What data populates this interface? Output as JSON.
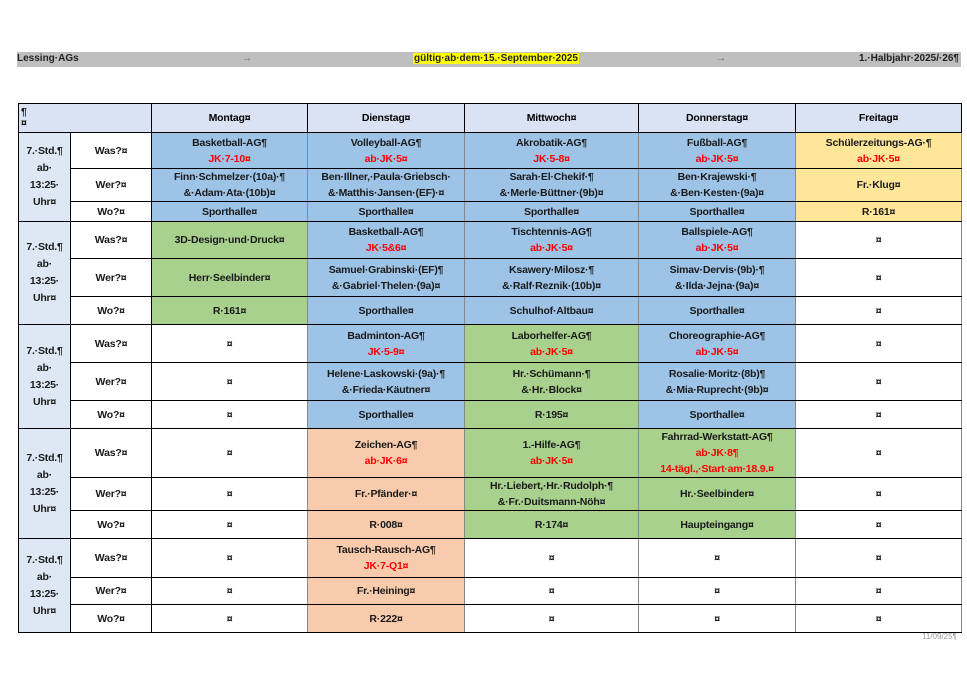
{
  "header": {
    "left": "Lessing·AGs",
    "center": "gültig·ab·dem·15.·September·2025",
    "right": "1.·Halbjahr·2025/·26¶",
    "tab_mark": "→"
  },
  "colors": {
    "blue": "#9dc3e6",
    "green": "#a9d18e",
    "orange": "#f8cbad",
    "yellow": "#ffe699",
    "head": "#dae3f3",
    "label": "#dde8f4",
    "white": "#ffffff"
  },
  "table": {
    "corner": [
      "¶",
      "¤"
    ],
    "days": [
      "Montag¤",
      "Dienstag¤",
      "Mittwoch¤",
      "Donnerstag¤",
      "Freitag¤"
    ],
    "block_label": [
      "7.·Std.¶",
      "ab·",
      "13:25·",
      "Uhr¤"
    ],
    "row_labels": [
      "Was?¤",
      "Wer?¤",
      "Wo?¤"
    ],
    "blocks": [
      {
        "rows": [
          [
            {
              "t": [
                "Basketball-AG¶"
              ],
              "r": [
                "JK·7-10¤"
              ],
              "bg": "blue"
            },
            {
              "t": [
                "Volleyball-AG¶"
              ],
              "r": [
                "ab·JK·5¤"
              ],
              "bg": "blue"
            },
            {
              "t": [
                "Akrobatik-AG¶"
              ],
              "r": [
                "JK·5-8¤"
              ],
              "bg": "blue"
            },
            {
              "t": [
                "Fußball-AG¶"
              ],
              "r": [
                "ab·JK·5¤"
              ],
              "bg": "blue"
            },
            {
              "t": [
                "Schülerzeitungs-AG·¶"
              ],
              "r": [
                "ab·JK·5¤"
              ],
              "bg": "yellow"
            }
          ],
          [
            {
              "t": [
                "Finn·Schmelzer·(10a)·¶",
                "&·Adam·Ata·(10b)¤"
              ],
              "bg": "blue"
            },
            {
              "t": [
                "Ben·Illner,·Paula·Griebsch·",
                "&·Matthis·Jansen·(EF)·¤"
              ],
              "bg": "blue"
            },
            {
              "t": [
                "Sarah·El·Chekif·¶",
                "&·Merle·Büttner·(9b)¤"
              ],
              "bg": "blue"
            },
            {
              "t": [
                "Ben·Krajewski·¶",
                "&·Ben·Kesten·(9a)¤"
              ],
              "bg": "blue"
            },
            {
              "t": [
                "Fr.·Klug¤"
              ],
              "bg": "yellow"
            }
          ],
          [
            {
              "t": [
                "Sporthalle¤"
              ],
              "bg": "blue"
            },
            {
              "t": [
                "Sporthalle¤"
              ],
              "bg": "blue"
            },
            {
              "t": [
                "Sporthalle¤"
              ],
              "bg": "blue"
            },
            {
              "t": [
                "Sporthalle¤"
              ],
              "bg": "blue"
            },
            {
              "t": [
                "R·161¤"
              ],
              "bg": "yellow"
            }
          ]
        ]
      },
      {
        "rows": [
          [
            {
              "t": [
                "3D-Design·und·Druck¤"
              ],
              "bg": "green"
            },
            {
              "t": [
                "Basketball-AG¶"
              ],
              "r": [
                "JK·5&6¤"
              ],
              "bg": "blue"
            },
            {
              "t": [
                "Tischtennis-AG¶"
              ],
              "r": [
                "ab·JK·5¤"
              ],
              "bg": "blue"
            },
            {
              "t": [
                "Ballspiele-AG¶"
              ],
              "r": [
                "ab·JK·5¤"
              ],
              "bg": "blue"
            },
            {
              "t": [
                "¤"
              ],
              "bg": "white"
            }
          ],
          [
            {
              "t": [
                "Herr·Seelbinder¤"
              ],
              "bg": "green"
            },
            {
              "t": [
                "Samuel·Grabinski·(EF)¶",
                "&·Gabriel·Thelen·(9a)¤"
              ],
              "bg": "blue"
            },
            {
              "t": [
                "Ksawery·Milosz·¶",
                "&·Ralf·Reznik·(10b)¤"
              ],
              "bg": "blue"
            },
            {
              "t": [
                "Simav·Dervis·(9b)·¶",
                "&·Ilda·Jejna·(9a)¤"
              ],
              "bg": "blue"
            },
            {
              "t": [
                "¤"
              ],
              "bg": "white"
            }
          ],
          [
            {
              "t": [
                "R·161¤"
              ],
              "bg": "green"
            },
            {
              "t": [
                "Sporthalle¤"
              ],
              "bg": "blue"
            },
            {
              "t": [
                "Schulhof·Altbau¤"
              ],
              "bg": "blue"
            },
            {
              "t": [
                "Sporthalle¤"
              ],
              "bg": "blue"
            },
            {
              "t": [
                "¤"
              ],
              "bg": "white"
            }
          ]
        ]
      },
      {
        "rows": [
          [
            {
              "t": [
                "¤"
              ],
              "bg": "white"
            },
            {
              "t": [
                "Badminton-AG¶"
              ],
              "r": [
                "JK·5-9¤"
              ],
              "bg": "blue"
            },
            {
              "t": [
                "Laborhelfer-AG¶"
              ],
              "r": [
                "ab·JK·5¤"
              ],
              "bg": "green"
            },
            {
              "t": [
                "Choreographie-AG¶"
              ],
              "r": [
                "ab·JK·5¤"
              ],
              "bg": "blue"
            },
            {
              "t": [
                "¤"
              ],
              "bg": "white"
            }
          ],
          [
            {
              "t": [
                "¤"
              ],
              "bg": "white"
            },
            {
              "t": [
                "Helene·Laskowski·(9a)·¶",
                "&·Frieda·Käutner¤"
              ],
              "bg": "blue"
            },
            {
              "t": [
                "Hr.·Schümann·¶",
                "&·Hr.·Block¤"
              ],
              "bg": "green"
            },
            {
              "t": [
                "Rosalie·Moritz·(8b)¶",
                "&·Mia·Ruprecht·(9b)¤"
              ],
              "bg": "blue"
            },
            {
              "t": [
                "¤"
              ],
              "bg": "white"
            }
          ],
          [
            {
              "t": [
                "¤"
              ],
              "bg": "white"
            },
            {
              "t": [
                "Sporthalle¤"
              ],
              "bg": "blue"
            },
            {
              "t": [
                "R·195¤"
              ],
              "bg": "green"
            },
            {
              "t": [
                "Sporthalle¤"
              ],
              "bg": "blue"
            },
            {
              "t": [
                "¤"
              ],
              "bg": "white"
            }
          ]
        ]
      },
      {
        "rows": [
          [
            {
              "t": [
                "¤"
              ],
              "bg": "white"
            },
            {
              "t": [
                "Zeichen-AG¶"
              ],
              "r": [
                "ab·JK·6¤"
              ],
              "bg": "orange"
            },
            {
              "t": [
                "1.-Hilfe-AG¶"
              ],
              "r": [
                "ab·JK·5¤"
              ],
              "bg": "green"
            },
            {
              "t": [
                "Fahrrad-Werkstatt-AG¶"
              ],
              "r": [
                "ab·JK·8¶",
                "14-tägl.,·Start·am·18.9.¤"
              ],
              "bg": "green"
            },
            {
              "t": [
                "¤"
              ],
              "bg": "white"
            }
          ],
          [
            {
              "t": [
                "¤"
              ],
              "bg": "white"
            },
            {
              "t": [
                "Fr.·Pfänder·¤"
              ],
              "bg": "orange"
            },
            {
              "t": [
                "Hr.·Liebert,·Hr.·Rudolph·¶",
                "&·Fr.·Duitsmann-Nöh¤"
              ],
              "bg": "green"
            },
            {
              "t": [
                "Hr.·Seelbinder¤"
              ],
              "bg": "green"
            },
            {
              "t": [
                "¤"
              ],
              "bg": "white"
            }
          ],
          [
            {
              "t": [
                "¤"
              ],
              "bg": "white"
            },
            {
              "t": [
                "R·008¤"
              ],
              "bg": "orange"
            },
            {
              "t": [
                "R·174¤"
              ],
              "bg": "green"
            },
            {
              "t": [
                "Haupteingang¤"
              ],
              "bg": "green"
            },
            {
              "t": [
                "¤"
              ],
              "bg": "white"
            }
          ]
        ]
      },
      {
        "rows": [
          [
            {
              "t": [
                "¤"
              ],
              "bg": "white"
            },
            {
              "t": [
                "Tausch-Rausch-AG¶"
              ],
              "r": [
                "JK·7-Q1¤"
              ],
              "bg": "orange"
            },
            {
              "t": [
                "¤"
              ],
              "bg": "white"
            },
            {
              "t": [
                "¤"
              ],
              "bg": "white"
            },
            {
              "t": [
                "¤"
              ],
              "bg": "white"
            }
          ],
          [
            {
              "t": [
                "¤"
              ],
              "bg": "white"
            },
            {
              "t": [
                "Fr.·Heining¤"
              ],
              "bg": "orange"
            },
            {
              "t": [
                "¤"
              ],
              "bg": "white"
            },
            {
              "t": [
                "¤"
              ],
              "bg": "white"
            },
            {
              "t": [
                "¤"
              ],
              "bg": "white"
            }
          ],
          [
            {
              "t": [
                "¤"
              ],
              "bg": "white"
            },
            {
              "t": [
                "R·222¤"
              ],
              "bg": "orange"
            },
            {
              "t": [
                "¤"
              ],
              "bg": "white"
            },
            {
              "t": [
                "¤"
              ],
              "bg": "white"
            },
            {
              "t": [
                "¤"
              ],
              "bg": "white"
            }
          ]
        ]
      }
    ]
  },
  "footer": "11/09/25¶"
}
